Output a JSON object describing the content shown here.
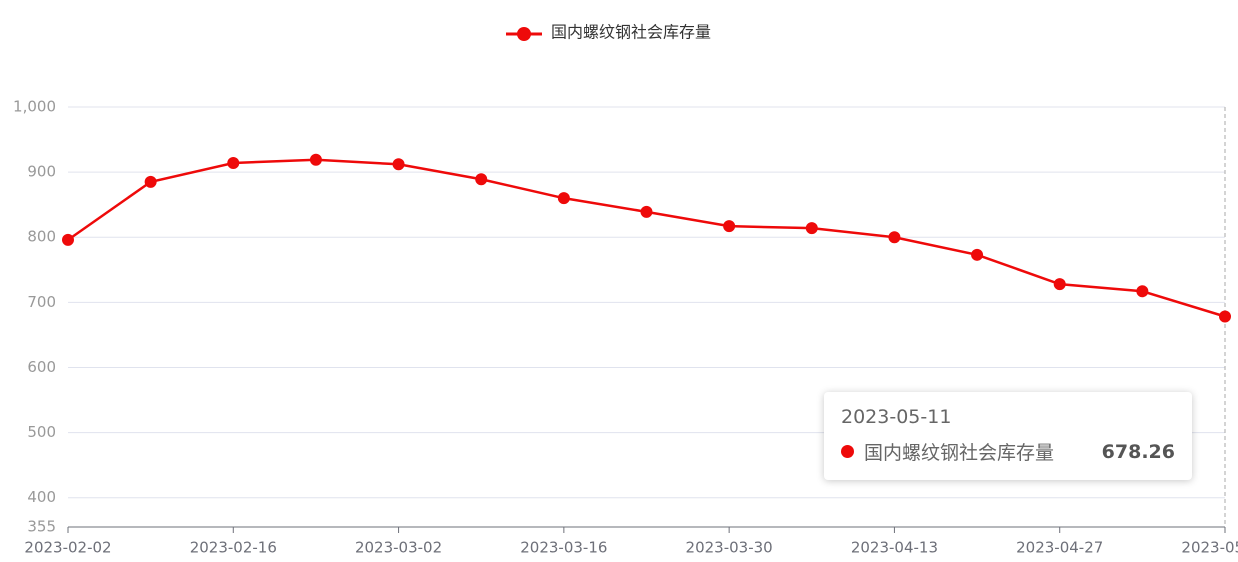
{
  "chart_data": {
    "type": "line",
    "categories": [
      "2023-02-02",
      null,
      "2023-02-16",
      null,
      "2023-03-02",
      null,
      "2023-03-16",
      null,
      "2023-03-30",
      null,
      "2023-04-13",
      null,
      "2023-04-27",
      null,
      "2023-05-11"
    ],
    "series": [
      {
        "name": "国内螺纹钢社会库存量",
        "color": "#ee0a0a",
        "values": [
          796,
          885,
          914,
          919,
          912,
          889,
          860,
          839,
          817,
          814,
          800,
          773,
          728,
          717,
          678.26
        ]
      }
    ],
    "ylim": [
      355,
      1000
    ],
    "yticks": [
      355,
      400,
      500,
      600,
      700,
      800,
      900,
      {
        "value": 1000,
        "label": "1,000"
      }
    ],
    "grid": true
  }
}
